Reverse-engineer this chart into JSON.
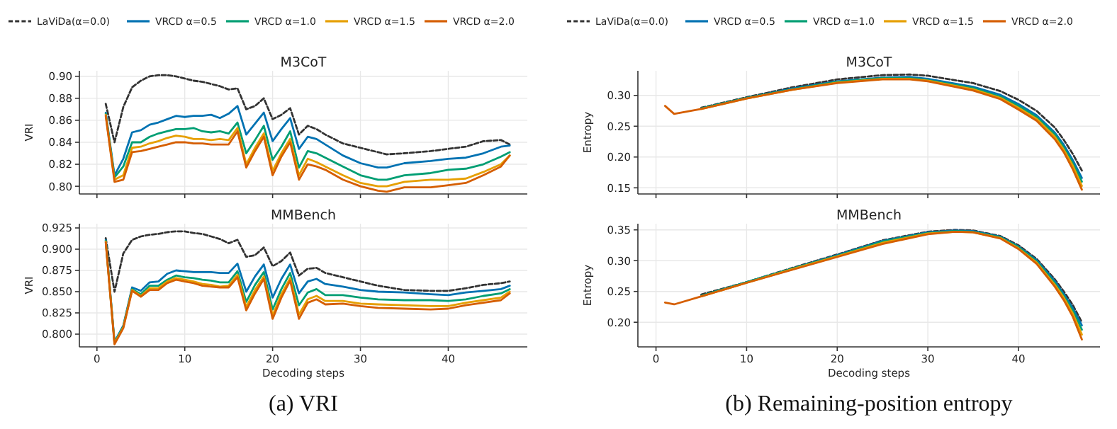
{
  "chart_data": [
    {
      "type": "line",
      "title": "M3CoT",
      "ylabel": "VRI",
      "x": [
        1,
        2,
        3,
        4,
        5,
        6,
        7,
        8,
        9,
        10,
        11,
        12,
        13,
        14,
        15,
        16,
        17,
        18,
        19,
        20,
        21,
        22,
        23,
        24,
        25,
        26,
        28,
        30,
        32,
        33,
        35,
        38,
        40,
        42,
        44,
        46,
        47
      ],
      "xlim": [
        -2,
        49
      ],
      "xticks": [
        0,
        10,
        20,
        30,
        40
      ],
      "ylim": [
        0.793,
        0.905
      ],
      "yticks": [
        {
          "value": 0.8,
          "label": "0.80"
        },
        {
          "value": 0.82,
          "label": "0.82"
        },
        {
          "value": 0.84,
          "label": "0.84"
        },
        {
          "value": 0.86,
          "label": "0.86"
        },
        {
          "value": 0.88,
          "label": "0.88"
        },
        {
          "value": 0.9,
          "label": "0.90"
        }
      ],
      "tick_labels": "y",
      "grid": true,
      "legend": "top",
      "series": [
        {
          "name": "LaViDa(α=0.0)",
          "color": "#333333",
          "line_style": "dashed",
          "values": [
            0.875,
            0.84,
            0.872,
            0.89,
            0.896,
            0.9,
            0.901,
            0.901,
            0.9,
            0.898,
            0.896,
            0.895,
            0.893,
            0.891,
            0.888,
            0.889,
            0.87,
            0.873,
            0.88,
            0.861,
            0.865,
            0.871,
            0.847,
            0.855,
            0.852,
            0.847,
            0.839,
            0.835,
            0.831,
            0.829,
            0.83,
            0.832,
            0.834,
            0.836,
            0.841,
            0.842,
            0.838
          ]
        },
        {
          "name": "VRCD α=0.5",
          "color": "#0072b2",
          "values": [
            0.867,
            0.81,
            0.825,
            0.849,
            0.851,
            0.856,
            0.858,
            0.861,
            0.864,
            0.863,
            0.864,
            0.864,
            0.865,
            0.862,
            0.866,
            0.873,
            0.847,
            0.857,
            0.867,
            0.841,
            0.852,
            0.862,
            0.834,
            0.845,
            0.843,
            0.838,
            0.828,
            0.821,
            0.817,
            0.817,
            0.821,
            0.823,
            0.825,
            0.826,
            0.83,
            0.836,
            0.837
          ]
        },
        {
          "name": "VRCD α=1.0",
          "color": "#009e73",
          "values": [
            0.866,
            0.808,
            0.818,
            0.84,
            0.84,
            0.845,
            0.848,
            0.85,
            0.852,
            0.852,
            0.853,
            0.85,
            0.849,
            0.85,
            0.848,
            0.858,
            0.83,
            0.842,
            0.855,
            0.824,
            0.836,
            0.85,
            0.817,
            0.832,
            0.83,
            0.826,
            0.818,
            0.81,
            0.806,
            0.806,
            0.81,
            0.812,
            0.815,
            0.816,
            0.82,
            0.827,
            0.831
          ]
        },
        {
          "name": "VRCD α=1.5",
          "color": "#e69f00",
          "values": [
            0.865,
            0.806,
            0.81,
            0.835,
            0.836,
            0.839,
            0.841,
            0.844,
            0.846,
            0.845,
            0.843,
            0.843,
            0.842,
            0.843,
            0.842,
            0.853,
            0.82,
            0.835,
            0.848,
            0.814,
            0.83,
            0.843,
            0.81,
            0.825,
            0.822,
            0.818,
            0.81,
            0.803,
            0.8,
            0.8,
            0.804,
            0.806,
            0.806,
            0.807,
            0.813,
            0.82,
            0.828
          ]
        },
        {
          "name": "VRCD α=2.0",
          "color": "#d55e00",
          "values": [
            0.864,
            0.804,
            0.806,
            0.831,
            0.832,
            0.834,
            0.836,
            0.838,
            0.84,
            0.84,
            0.839,
            0.839,
            0.838,
            0.838,
            0.838,
            0.85,
            0.817,
            0.832,
            0.845,
            0.81,
            0.827,
            0.84,
            0.806,
            0.82,
            0.818,
            0.815,
            0.806,
            0.8,
            0.796,
            0.795,
            0.799,
            0.799,
            0.801,
            0.803,
            0.81,
            0.818,
            0.828
          ]
        }
      ]
    },
    {
      "type": "line",
      "title": "MMBench",
      "ylabel": "VRI",
      "xlabel": "Decoding steps",
      "annotations": [
        "(a) VRI"
      ],
      "x": [
        1,
        2,
        3,
        4,
        5,
        6,
        7,
        8,
        9,
        10,
        11,
        12,
        13,
        14,
        15,
        16,
        17,
        18,
        19,
        20,
        21,
        22,
        23,
        24,
        25,
        26,
        28,
        30,
        32,
        35,
        38,
        40,
        42,
        44,
        46,
        47
      ],
      "xlim": [
        -2,
        49
      ],
      "xticks": [
        0,
        10,
        20,
        30,
        40
      ],
      "ylim": [
        0.785,
        0.93
      ],
      "yticks": [
        {
          "value": 0.8,
          "label": "0.800"
        },
        {
          "value": 0.825,
          "label": "0.825"
        },
        {
          "value": 0.85,
          "label": "0.850"
        },
        {
          "value": 0.875,
          "label": "0.875"
        },
        {
          "value": 0.9,
          "label": "0.900"
        },
        {
          "value": 0.925,
          "label": "0.925"
        }
      ],
      "grid": true,
      "series": [
        {
          "color": "#333333",
          "line_style": "dashed",
          "values": [
            0.913,
            0.85,
            0.895,
            0.911,
            0.915,
            0.917,
            0.918,
            0.92,
            0.921,
            0.921,
            0.919,
            0.918,
            0.915,
            0.912,
            0.907,
            0.911,
            0.891,
            0.893,
            0.902,
            0.88,
            0.886,
            0.896,
            0.869,
            0.877,
            0.878,
            0.872,
            0.867,
            0.862,
            0.857,
            0.852,
            0.851,
            0.851,
            0.854,
            0.858,
            0.86,
            0.862
          ]
        },
        {
          "color": "#0072b2",
          "values": [
            0.911,
            0.791,
            0.81,
            0.855,
            0.851,
            0.861,
            0.862,
            0.871,
            0.875,
            0.874,
            0.873,
            0.873,
            0.873,
            0.872,
            0.872,
            0.883,
            0.85,
            0.868,
            0.882,
            0.843,
            0.865,
            0.882,
            0.848,
            0.862,
            0.865,
            0.859,
            0.856,
            0.852,
            0.85,
            0.849,
            0.847,
            0.846,
            0.849,
            0.851,
            0.853,
            0.857
          ]
        },
        {
          "color": "#009e73",
          "values": [
            0.91,
            0.79,
            0.809,
            0.853,
            0.847,
            0.857,
            0.857,
            0.864,
            0.869,
            0.867,
            0.866,
            0.864,
            0.863,
            0.861,
            0.861,
            0.874,
            0.838,
            0.858,
            0.873,
            0.829,
            0.853,
            0.872,
            0.834,
            0.849,
            0.853,
            0.846,
            0.846,
            0.843,
            0.841,
            0.84,
            0.84,
            0.839,
            0.841,
            0.845,
            0.848,
            0.853
          ]
        },
        {
          "color": "#e69f00",
          "values": [
            0.909,
            0.789,
            0.808,
            0.852,
            0.845,
            0.854,
            0.854,
            0.862,
            0.866,
            0.864,
            0.862,
            0.859,
            0.858,
            0.856,
            0.857,
            0.87,
            0.832,
            0.852,
            0.868,
            0.822,
            0.847,
            0.866,
            0.823,
            0.841,
            0.845,
            0.839,
            0.839,
            0.836,
            0.835,
            0.834,
            0.833,
            0.833,
            0.837,
            0.84,
            0.843,
            0.85
          ]
        },
        {
          "color": "#d55e00",
          "values": [
            0.908,
            0.788,
            0.807,
            0.851,
            0.844,
            0.852,
            0.852,
            0.86,
            0.864,
            0.862,
            0.86,
            0.857,
            0.856,
            0.855,
            0.855,
            0.867,
            0.828,
            0.848,
            0.865,
            0.818,
            0.843,
            0.863,
            0.818,
            0.837,
            0.841,
            0.835,
            0.836,
            0.833,
            0.831,
            0.83,
            0.829,
            0.83,
            0.834,
            0.837,
            0.84,
            0.848
          ]
        }
      ]
    },
    {
      "type": "line",
      "title": "M3CoT",
      "ylabel": "Entropy",
      "x": [
        1,
        2,
        5,
        10,
        15,
        20,
        25,
        28,
        30,
        35,
        38,
        40,
        42,
        44,
        45,
        46,
        47
      ],
      "xlim": [
        -2,
        49
      ],
      "xticks": [
        0,
        10,
        20,
        30,
        40
      ],
      "ylim": [
        0.14,
        0.34
      ],
      "yticks": [
        0.15,
        {
          "value": 0.2,
          "label": "0.20"
        },
        0.25,
        {
          "value": 0.3,
          "label": "0.30"
        }
      ],
      "tick_labels": "y",
      "grid": true,
      "legend": "top",
      "series": [
        {
          "name": "LaViDa(α=0.0)",
          "color": "#333333",
          "line_style": "dashed",
          "values": [
            null,
            null,
            0.28,
            0.297,
            0.313,
            0.326,
            0.333,
            0.334,
            0.332,
            0.32,
            0.307,
            0.293,
            0.275,
            0.248,
            0.228,
            0.205,
            0.178
          ]
        },
        {
          "name": "VRCD α=0.5",
          "color": "#0072b2",
          "values": [
            null,
            null,
            0.279,
            0.296,
            0.311,
            0.323,
            0.329,
            0.33,
            0.327,
            0.314,
            0.301,
            0.286,
            0.268,
            0.24,
            0.22,
            0.195,
            0.166
          ]
        },
        {
          "name": "VRCD α=1.0",
          "color": "#009e73",
          "values": [
            null,
            null,
            0.279,
            0.296,
            0.31,
            0.322,
            0.328,
            0.328,
            0.325,
            0.312,
            0.298,
            0.283,
            0.265,
            0.237,
            0.216,
            0.19,
            0.16
          ]
        },
        {
          "name": "VRCD α=1.5",
          "color": "#e69f00",
          "values": [
            null,
            null,
            0.278,
            0.295,
            0.309,
            0.321,
            0.327,
            0.327,
            0.324,
            0.31,
            0.296,
            0.28,
            0.262,
            0.233,
            0.212,
            0.186,
            0.153
          ]
        },
        {
          "name": "VRCD α=2.0",
          "color": "#d55e00",
          "values": [
            0.283,
            0.27,
            0.278,
            0.295,
            0.309,
            0.32,
            0.326,
            0.326,
            0.323,
            0.308,
            0.294,
            0.277,
            0.259,
            0.229,
            0.208,
            0.18,
            0.147
          ]
        }
      ]
    },
    {
      "type": "line",
      "title": "MMBench",
      "ylabel": "Entropy",
      "xlabel": "Decoding steps",
      "annotations": [
        "(b) Remaining-position entropy"
      ],
      "x": [
        1,
        2,
        5,
        10,
        15,
        20,
        25,
        30,
        33,
        35,
        38,
        40,
        42,
        44,
        45,
        46,
        47
      ],
      "xlim": [
        -2,
        49
      ],
      "xticks": [
        0,
        10,
        20,
        30,
        40
      ],
      "ylim": [
        0.16,
        0.36
      ],
      "yticks": [
        {
          "value": 0.2,
          "label": "0.20"
        },
        0.25,
        {
          "value": 0.3,
          "label": "0.30"
        },
        0.35
      ],
      "grid": true,
      "series": [
        {
          "color": "#333333",
          "line_style": "dashed",
          "values": [
            null,
            null,
            0.245,
            0.265,
            0.288,
            0.31,
            0.333,
            0.347,
            0.35,
            0.349,
            0.34,
            0.325,
            0.303,
            0.27,
            0.25,
            0.228,
            0.2
          ]
        },
        {
          "color": "#0072b2",
          "values": [
            null,
            null,
            0.243,
            0.265,
            0.287,
            0.309,
            0.332,
            0.346,
            0.349,
            0.348,
            0.339,
            0.323,
            0.301,
            0.267,
            0.246,
            0.223,
            0.195
          ]
        },
        {
          "color": "#009e73",
          "values": [
            null,
            null,
            0.243,
            0.265,
            0.287,
            0.308,
            0.331,
            0.345,
            0.348,
            0.347,
            0.338,
            0.322,
            0.299,
            0.264,
            0.243,
            0.219,
            0.188
          ]
        },
        {
          "color": "#e69f00",
          "values": [
            null,
            null,
            0.242,
            0.264,
            0.286,
            0.307,
            0.329,
            0.344,
            0.347,
            0.346,
            0.337,
            0.32,
            0.297,
            0.261,
            0.24,
            0.214,
            0.18
          ]
        },
        {
          "color": "#d55e00",
          "values": [
            0.232,
            0.229,
            0.242,
            0.264,
            0.285,
            0.306,
            0.327,
            0.343,
            0.347,
            0.346,
            0.336,
            0.319,
            0.295,
            0.258,
            0.236,
            0.209,
            0.172
          ]
        }
      ]
    }
  ]
}
